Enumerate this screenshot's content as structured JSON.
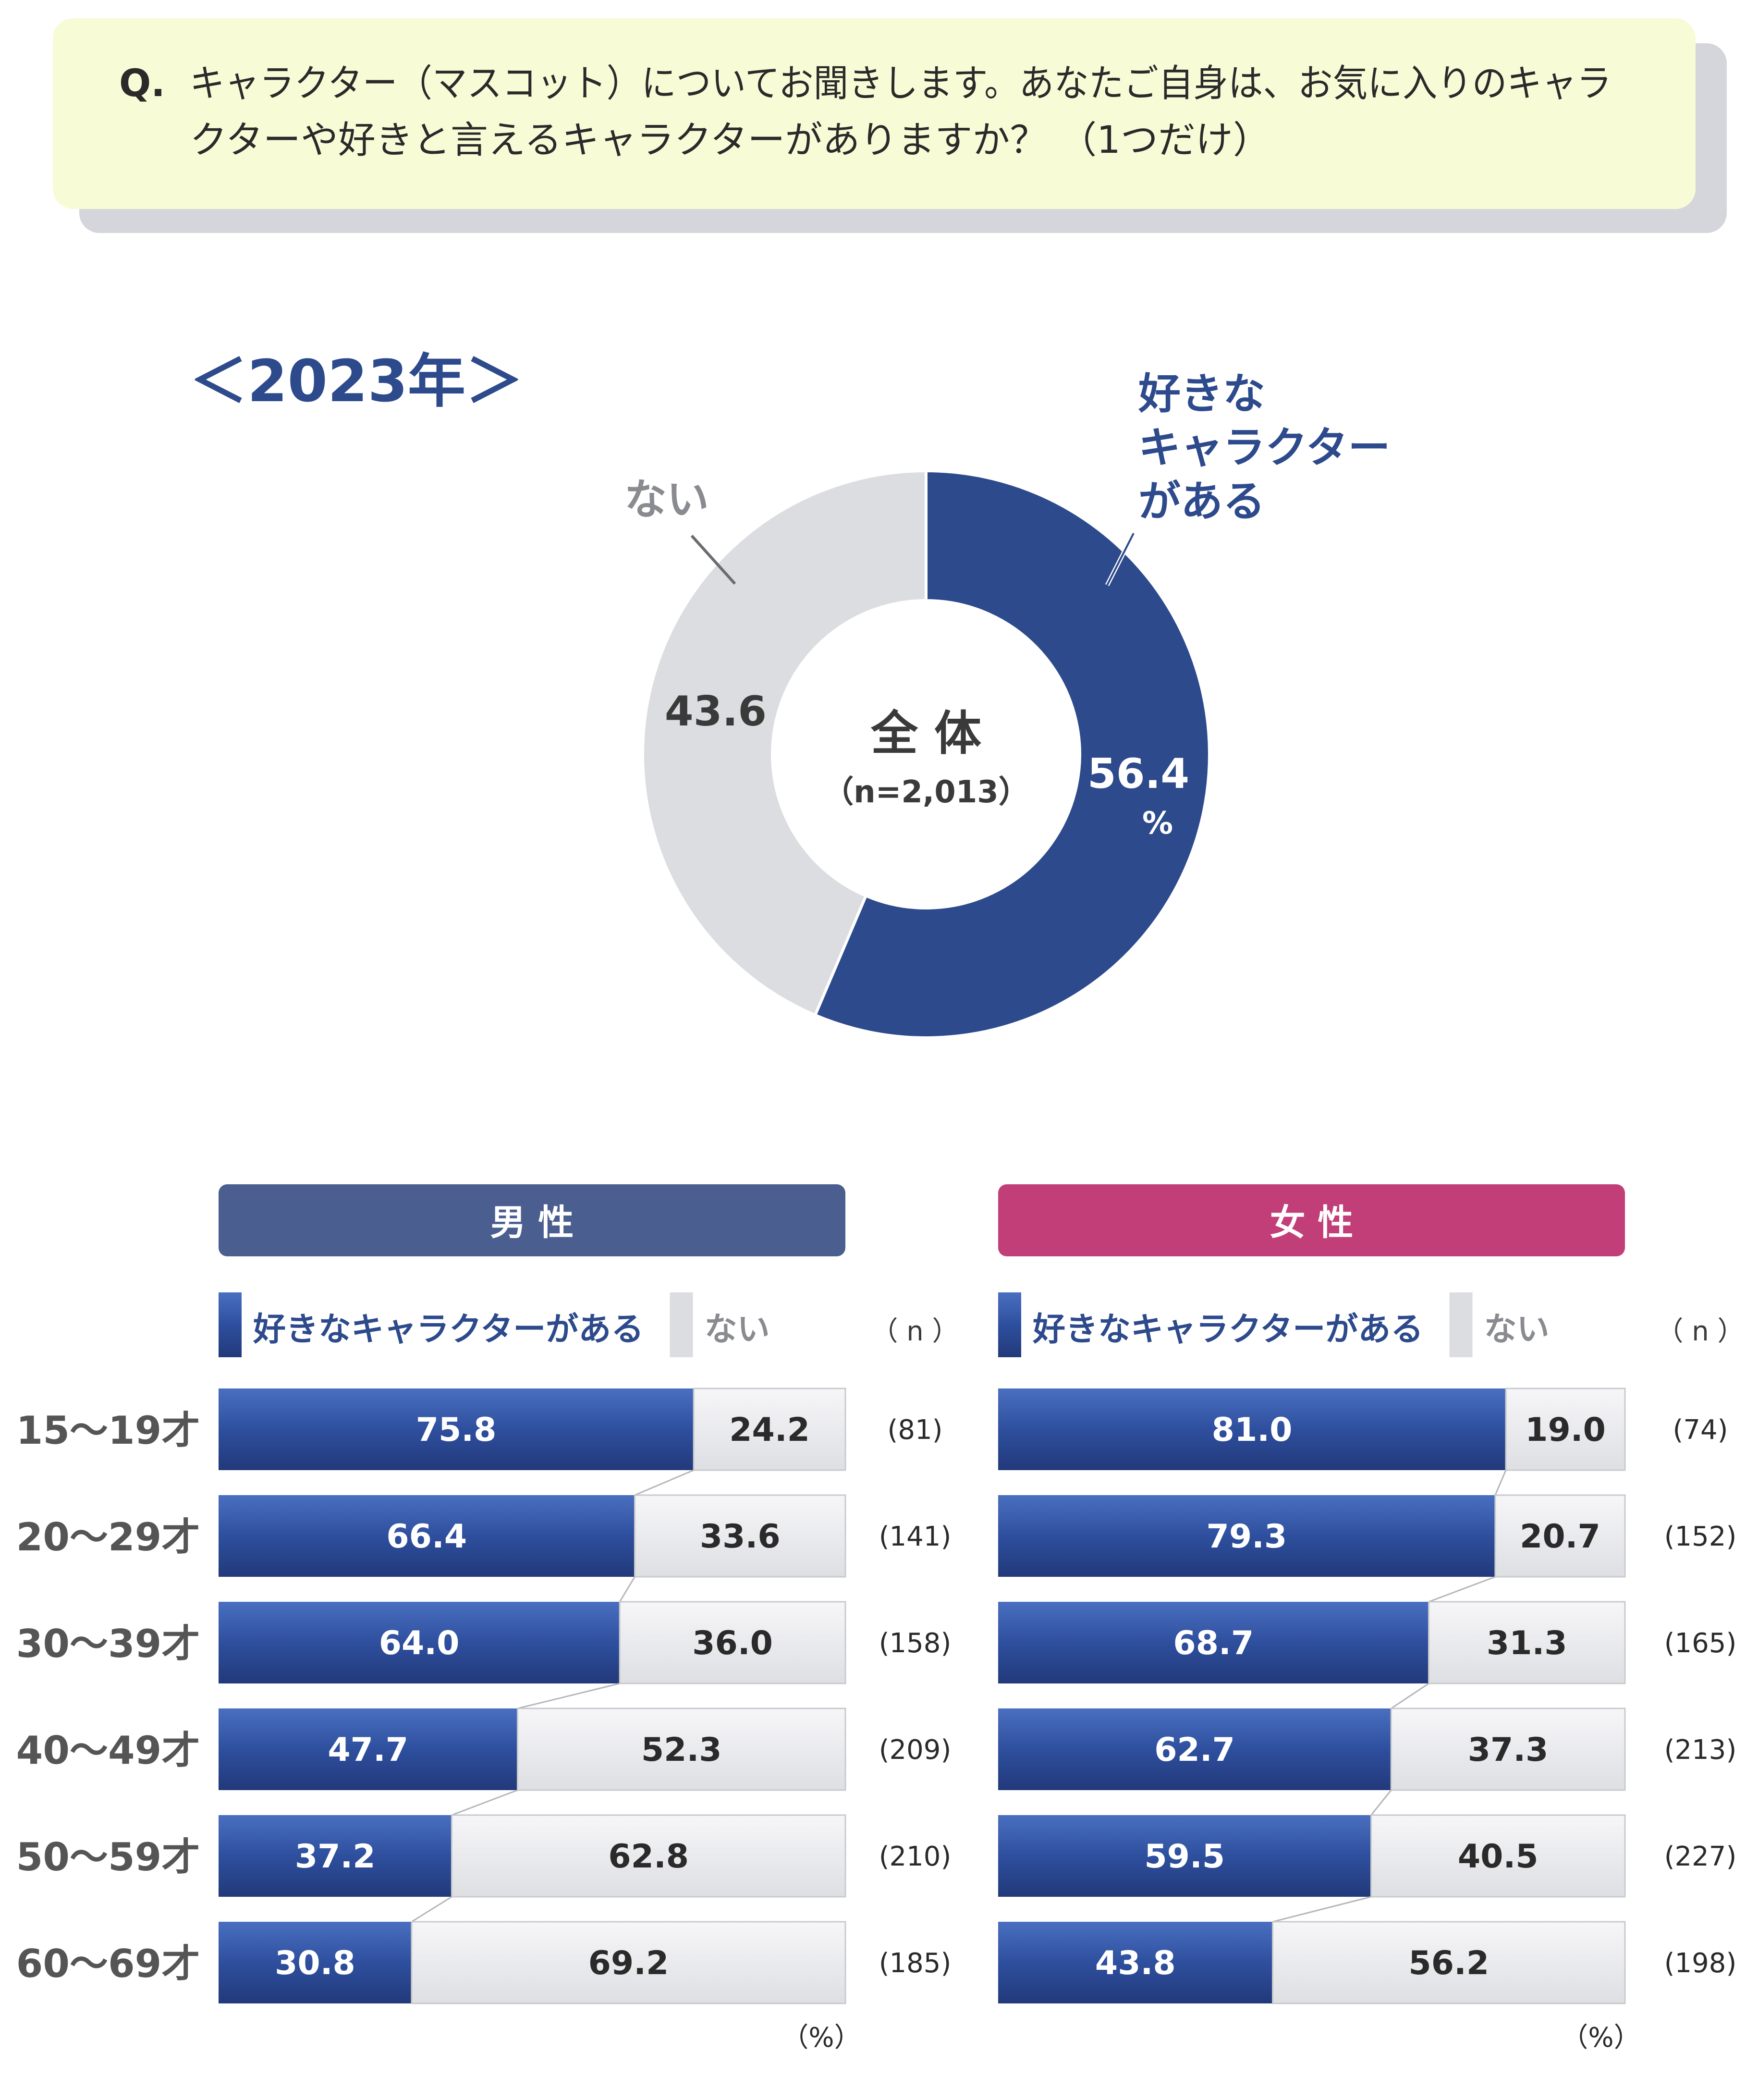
{
  "question": {
    "prefix": "Q.",
    "line1": "キャラクター（マスコット）についてお聞きします。あなたご自身は、お気に入りのキャラ",
    "line2": "クターや好きと言えるキャラクターがありますか？ （1つだけ）"
  },
  "year_label": "＜2023年＞",
  "colors": {
    "accent": "#2d4a8c",
    "no_gray": "#dcdde1",
    "question_bg": "#f8fcd6",
    "male_header": "#4a5e90",
    "female_header": "#c23e78",
    "text_dark": "#3a3a3a",
    "text_gray": "#8a8b90"
  },
  "chart_data": [
    {
      "type": "pie",
      "center_title": "全 体",
      "center_sub": "（n=2,013）",
      "unit": "%",
      "slices": [
        {
          "label": "好きな\nキャラクター\nがある",
          "value": 56.4,
          "color": "#2d4a8c"
        },
        {
          "label": "ない",
          "value": 43.6,
          "color": "#dcdde1"
        }
      ]
    },
    {
      "type": "bar",
      "orientation": "horizontal-stacked",
      "title": "男 性",
      "legend": [
        "好きなキャラクターがある",
        "ない"
      ],
      "n_header": "（ n ）",
      "unit_label": "（%）",
      "categories": [
        "15～19才",
        "20～29才",
        "30～39才",
        "40～49才",
        "50～59才",
        "60～69才"
      ],
      "series": [
        {
          "name": "好きなキャラクターがある",
          "values": [
            75.8,
            66.4,
            64.0,
            47.7,
            37.2,
            30.8
          ]
        },
        {
          "name": "ない",
          "values": [
            24.2,
            33.6,
            36.0,
            52.3,
            62.8,
            69.2
          ]
        }
      ],
      "n": [
        "(81)",
        "(141)",
        "(158)",
        "(209)",
        "(210)",
        "(185)"
      ],
      "xlim": [
        0,
        100
      ]
    },
    {
      "type": "bar",
      "orientation": "horizontal-stacked",
      "title": "女 性",
      "legend": [
        "好きなキャラクターがある",
        "ない"
      ],
      "n_header": "（ n ）",
      "unit_label": "（%）",
      "categories": [
        "15～19才",
        "20～29才",
        "30～39才",
        "40～49才",
        "50～59才",
        "60～69才"
      ],
      "series": [
        {
          "name": "好きなキャラクターがある",
          "values": [
            81.0,
            79.3,
            68.7,
            62.7,
            59.5,
            43.8
          ]
        },
        {
          "name": "ない",
          "values": [
            19.0,
            20.7,
            31.3,
            37.3,
            40.5,
            56.2
          ]
        }
      ],
      "n": [
        "(74)",
        "(152)",
        "(165)",
        "(213)",
        "(227)",
        "(198)"
      ],
      "xlim": [
        0,
        100
      ]
    }
  ]
}
